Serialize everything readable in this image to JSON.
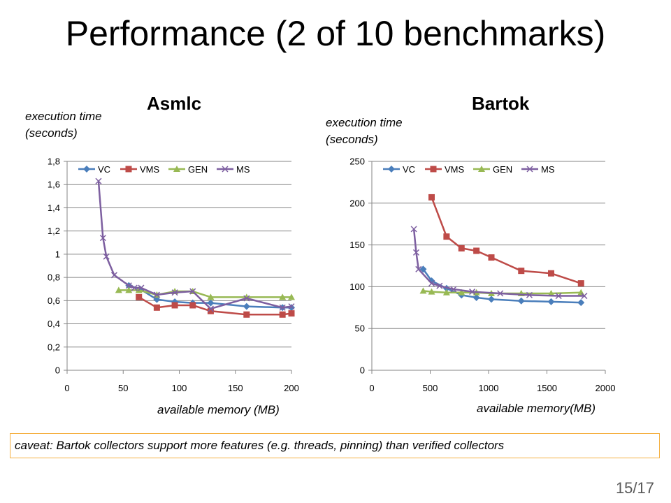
{
  "slide": {
    "title": "Performance (2 of 10 benchmarks)",
    "caveat": "caveat: Bartok collectors support more features (e.g. threads, pinning) than verified collectors",
    "page": "15/17"
  },
  "colors": {
    "VC": "#4a7ebb",
    "VMS": "#be4b48",
    "GEN": "#98b954",
    "MS": "#7d5fa0",
    "caveat_border": "#f5b041"
  },
  "chart_data": [
    {
      "type": "line",
      "title": "Asmlc",
      "ylabel": "execution time\n(seconds)",
      "xlabel": "available memory (MB)",
      "xlim": [
        0,
        200
      ],
      "ylim": [
        0,
        1.8
      ],
      "xticks": [
        0,
        50,
        100,
        150,
        200
      ],
      "yticks": [
        0,
        0.2,
        0.4,
        0.6,
        0.8,
        1,
        1.2,
        1.4,
        1.6,
        1.8
      ],
      "ytick_labels": [
        "0",
        "0,2",
        "0,4",
        "0,6",
        "0,8",
        "1",
        "1,2",
        "1,4",
        "1,6",
        "1,8"
      ],
      "grid": "horizontal",
      "legend": "top",
      "series": [
        {
          "name": "VC",
          "marker": "diamond",
          "x": [
            55,
            65,
            80,
            96,
            112,
            128,
            160,
            192,
            200
          ],
          "y": [
            0.73,
            0.7,
            0.61,
            0.59,
            0.58,
            0.58,
            0.55,
            0.54,
            0.54
          ]
        },
        {
          "name": "VMS",
          "marker": "square",
          "x": [
            64,
            80,
            96,
            112,
            128,
            160,
            192,
            200
          ],
          "y": [
            0.63,
            0.54,
            0.56,
            0.56,
            0.51,
            0.48,
            0.48,
            0.49
          ]
        },
        {
          "name": "GEN",
          "marker": "triangle",
          "x": [
            46,
            55,
            64,
            80,
            96,
            112,
            128,
            160,
            192,
            200
          ],
          "y": [
            0.69,
            0.69,
            0.69,
            0.65,
            0.68,
            0.68,
            0.63,
            0.63,
            0.63,
            0.63
          ]
        },
        {
          "name": "MS",
          "marker": "x",
          "x": [
            28,
            32,
            35,
            42,
            55,
            60,
            66,
            80,
            96,
            112,
            128,
            160,
            192,
            200
          ],
          "y": [
            1.63,
            1.14,
            0.98,
            0.82,
            0.73,
            0.71,
            0.71,
            0.65,
            0.67,
            0.68,
            0.53,
            0.62,
            0.54,
            0.55
          ]
        }
      ]
    },
    {
      "type": "line",
      "title": "Bartok",
      "ylabel": "execution time\n(seconds)",
      "xlabel": "available memory(MB)",
      "xlim": [
        0,
        2000
      ],
      "ylim": [
        0,
        250
      ],
      "xticks": [
        0,
        500,
        1000,
        1500,
        2000
      ],
      "yticks": [
        0,
        50,
        100,
        150,
        200,
        250
      ],
      "ytick_labels": [
        "0",
        "50",
        "100",
        "150",
        "200",
        "250"
      ],
      "grid": "horizontal",
      "legend": "top",
      "series": [
        {
          "name": "VC",
          "marker": "diamond",
          "x": [
            440,
            512,
            640,
            768,
            896,
            1024,
            1280,
            1536,
            1792
          ],
          "y": [
            121,
            107,
            98,
            90,
            87,
            85,
            83,
            82,
            81
          ]
        },
        {
          "name": "VMS",
          "marker": "square",
          "x": [
            512,
            640,
            768,
            896,
            1024,
            1280,
            1536,
            1792
          ],
          "y": [
            207,
            160,
            146,
            143,
            135,
            119,
            116,
            104
          ]
        },
        {
          "name": "GEN",
          "marker": "triangle",
          "x": [
            440,
            512,
            640,
            768,
            896,
            1024,
            1280,
            1536,
            1792
          ],
          "y": [
            95,
            94,
            93,
            93,
            93,
            92,
            92,
            92,
            93
          ]
        },
        {
          "name": "MS",
          "marker": "x",
          "x": [
            360,
            380,
            400,
            512,
            580,
            700,
            860,
            1100,
            1350,
            1600,
            1820
          ],
          "y": [
            169,
            141,
            121,
            104,
            101,
            97,
            94,
            92,
            90,
            89,
            89
          ]
        }
      ]
    }
  ]
}
